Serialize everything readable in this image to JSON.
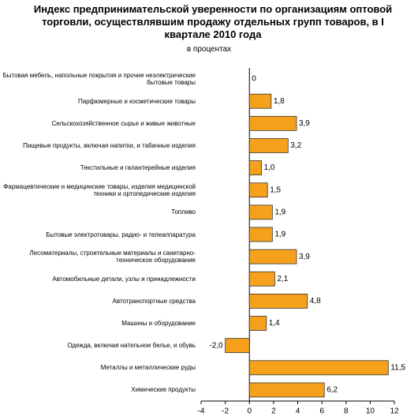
{
  "chart_data": {
    "type": "bar",
    "orientation": "horizontal",
    "title": "Индекс предпринимательской уверенности по организациям оптовой торговли, осуществлявшим продажу отдельных групп товаров, в I квартале 2010 года",
    "subtitle": "в процентах",
    "categories": [
      "Бытовая мебель, напольные покрытия и прочие неэлектрические бытовые товары",
      "Парфюмерные и косметические товары",
      "Сельскохозяйственное сырье и живые животные",
      "Пищевые продукты, включая напитки, и табачные изделия",
      "Текстильные и галантерейные изделия",
      "Фармацевтические и медицинские товары, изделия медицинской техники и ортопедические изделия",
      "Топливо",
      "Бытовые электротовары, радио- и телеаппаратура",
      "Лесоматериалы, строительные материалы и санитарно-техническое оборудование",
      "Автомобильные детали, узлы и принадлежности",
      "Автотранспортные средства",
      "Машины и оборудование",
      "Одежда, включая нательное белье, и обувь",
      "Металлы и металлические руды",
      "Химические продукты"
    ],
    "values": [
      0,
      1.8,
      3.9,
      3.2,
      1.0,
      1.5,
      1.9,
      1.9,
      3.9,
      2.1,
      4.8,
      1.4,
      -2.0,
      11.5,
      6.2
    ],
    "value_labels": [
      "0",
      "1,8",
      "3,9",
      "3,2",
      "1,0",
      "1,5",
      "1,9",
      "1,9",
      "3,9",
      "2,1",
      "4,8",
      "1,4",
      "-2,0",
      "11,5",
      "6,2"
    ],
    "color": "#f5a11c",
    "xlim": [
      -4,
      12
    ],
    "xticks": [
      -4,
      -2,
      0,
      2,
      4,
      6,
      8,
      10,
      12
    ]
  }
}
